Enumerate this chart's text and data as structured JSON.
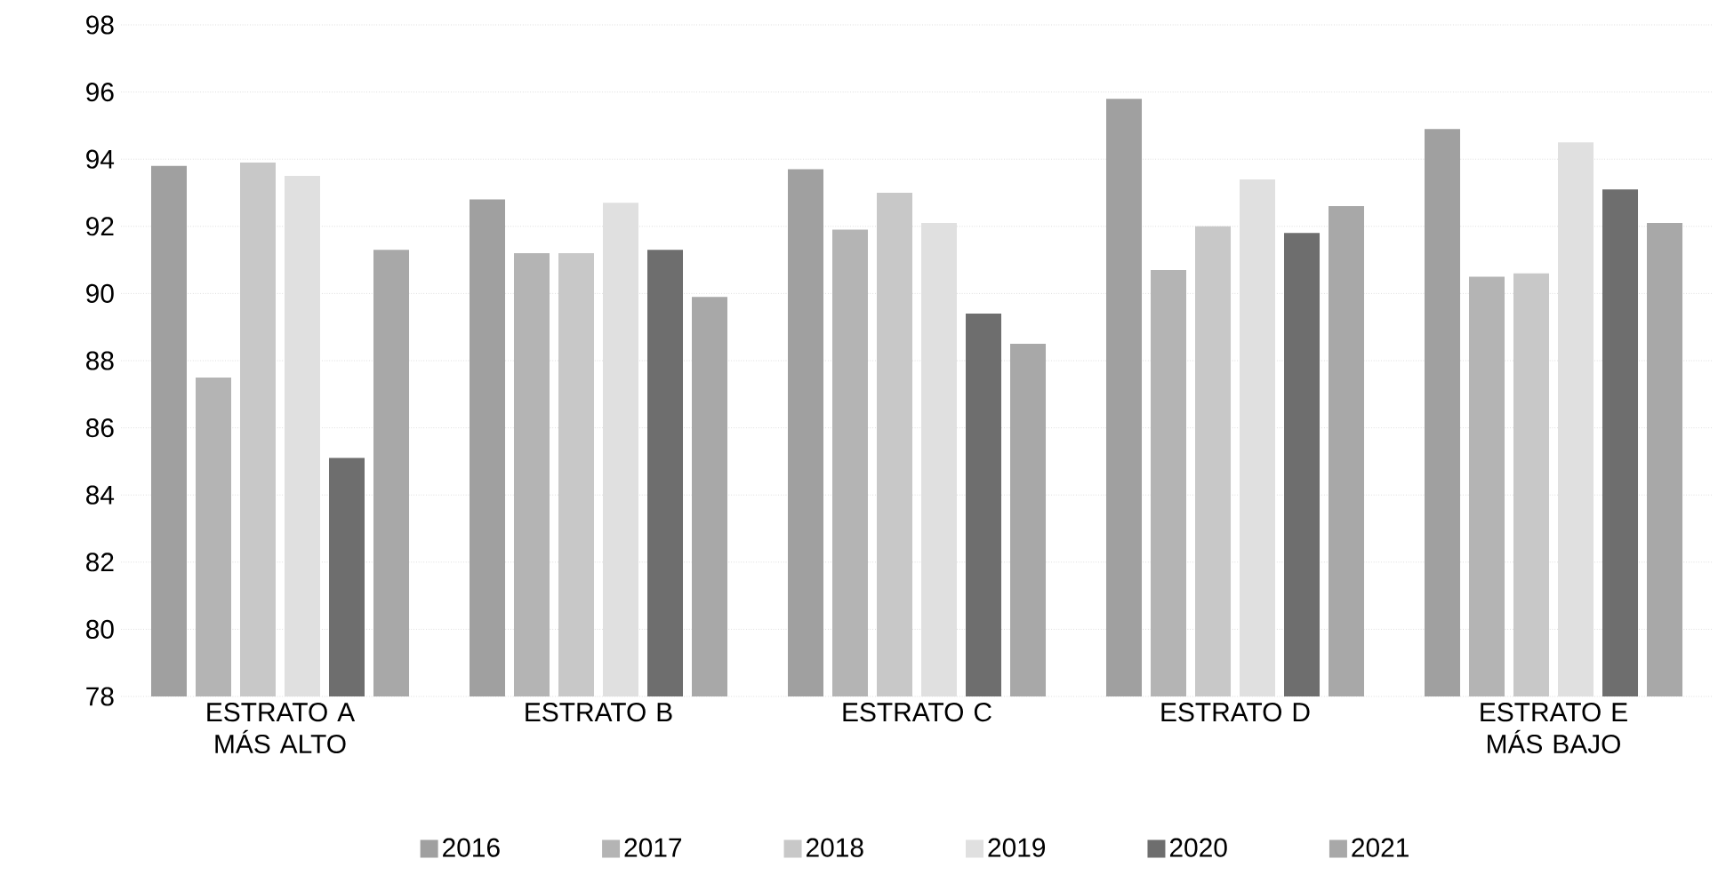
{
  "chart_data": {
    "type": "bar",
    "categories": [
      "ESTRATO A MÁS ALTO",
      "ESTRATO B",
      "ESTRATO C",
      "ESTRATO D",
      "ESTRATO E MÁS BAJO"
    ],
    "series": [
      {
        "name": "2016",
        "color": "#a0a0a0",
        "values": [
          93.8,
          92.8,
          93.7,
          95.8,
          94.9
        ]
      },
      {
        "name": "2017",
        "color": "#b4b4b4",
        "values": [
          87.5,
          91.2,
          91.9,
          90.7,
          90.5
        ]
      },
      {
        "name": "2018",
        "color": "#c8c8c8",
        "values": [
          93.9,
          91.2,
          93.0,
          92.0,
          90.6
        ]
      },
      {
        "name": "2019",
        "color": "#e0e0e0",
        "values": [
          93.5,
          92.7,
          92.1,
          93.4,
          94.5
        ]
      },
      {
        "name": "2020",
        "color": "#6e6e6e",
        "values": [
          85.1,
          91.3,
          89.4,
          91.8,
          93.1
        ]
      },
      {
        "name": "2021",
        "color": "#a8a8a8",
        "values": [
          91.3,
          89.9,
          88.5,
          92.6,
          92.1
        ]
      }
    ],
    "ylim": [
      78,
      98
    ],
    "yticks": [
      78,
      80,
      82,
      84,
      86,
      88,
      90,
      92,
      94,
      96,
      98
    ],
    "grid": "y",
    "legend": "bottom"
  }
}
